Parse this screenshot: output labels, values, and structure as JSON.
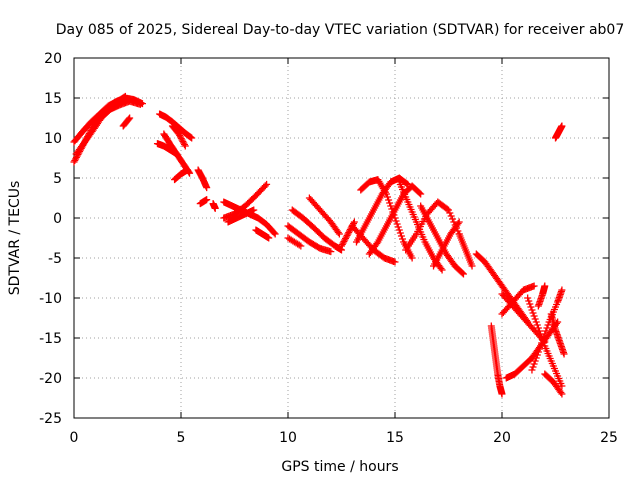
{
  "chart_data": {
    "type": "scatter",
    "title": "Day 085 of 2025, Sidereal Day-to-day VTEC variation (SDTVAR) for receiver ab07",
    "xlabel": "GPS time / hours",
    "ylabel": "SDTVAR / TECUs",
    "xlim": [
      0,
      25
    ],
    "ylim": [
      -25,
      20
    ],
    "x_ticks": [
      "0",
      "5",
      "10",
      "15",
      "20",
      "25"
    ],
    "y_ticks": [
      "20",
      "15",
      "10",
      "5",
      "0",
      "-5",
      "-10",
      "-15",
      "-20",
      "-25"
    ],
    "grid": true,
    "marker": "+",
    "series_color": "#ff0000",
    "traces": [
      {
        "name": "t1",
        "x": [
          0.0,
          0.3,
          0.6,
          0.9,
          1.2,
          1.6,
          2.0,
          2.4,
          2.8,
          3.2
        ],
        "y": [
          7.0,
          8.5,
          10.0,
          11.5,
          13.0,
          14.0,
          14.6,
          15.0,
          14.8,
          14.3
        ]
      },
      {
        "name": "t2",
        "x": [
          0.0,
          0.4,
          0.8,
          1.2,
          1.6,
          2.0,
          2.4
        ],
        "y": [
          9.5,
          10.8,
          12.0,
          13.0,
          13.8,
          14.5,
          15.2
        ]
      },
      {
        "name": "t3",
        "x": [
          0.1,
          0.5,
          0.9,
          1.3,
          1.7,
          2.1,
          2.6,
          3.1
        ],
        "y": [
          8.0,
          9.5,
          11.0,
          12.6,
          13.6,
          14.1,
          14.6,
          14.2
        ]
      },
      {
        "name": "t4",
        "x": [
          2.3,
          2.6
        ],
        "y": [
          11.5,
          12.5
        ]
      },
      {
        "name": "t5",
        "x": [
          4.0,
          4.3,
          4.6,
          4.9,
          5.2,
          5.5
        ],
        "y": [
          13.0,
          12.6,
          12.0,
          11.3,
          10.6,
          10.0
        ]
      },
      {
        "name": "t6",
        "x": [
          4.2,
          4.5,
          4.8,
          5.1,
          5.4
        ],
        "y": [
          10.5,
          9.2,
          8.0,
          6.8,
          5.6
        ]
      },
      {
        "name": "t7",
        "x": [
          3.9,
          4.2,
          4.5,
          4.8
        ],
        "y": [
          9.3,
          9.0,
          8.5,
          8.0
        ]
      },
      {
        "name": "t8",
        "x": [
          4.6,
          4.9,
          5.2
        ],
        "y": [
          11.5,
          10.5,
          9.0
        ]
      },
      {
        "name": "t9",
        "x": [
          4.7,
          5.0,
          5.3
        ],
        "y": [
          4.8,
          5.5,
          6.0
        ]
      },
      {
        "name": "t10",
        "x": [
          5.8,
          6.0,
          6.2
        ],
        "y": [
          6.0,
          5.0,
          3.8
        ]
      },
      {
        "name": "t11",
        "x": [
          5.9,
          6.2
        ],
        "y": [
          1.8,
          2.3
        ]
      },
      {
        "name": "t12",
        "x": [
          6.5,
          6.6
        ],
        "y": [
          1.8,
          1.2
        ]
      },
      {
        "name": "t13",
        "x": [
          7.0,
          7.5,
          8.0,
          8.5,
          9.0
        ],
        "y": [
          0.0,
          0.5,
          1.5,
          2.8,
          4.2
        ]
      },
      {
        "name": "t14",
        "x": [
          7.0,
          7.4,
          7.8,
          8.2,
          8.6,
          9.0,
          9.4
        ],
        "y": [
          2.0,
          1.5,
          1.0,
          0.5,
          0.0,
          -0.8,
          -2.0
        ]
      },
      {
        "name": "t15",
        "x": [
          7.2,
          7.6,
          8.0,
          8.4
        ],
        "y": [
          -0.5,
          0.0,
          0.5,
          1.0
        ]
      },
      {
        "name": "t16",
        "x": [
          8.5,
          8.8,
          9.1
        ],
        "y": [
          -1.5,
          -2.0,
          -2.5
        ]
      },
      {
        "name": "t17",
        "x": [
          10.0,
          10.5,
          11.0,
          11.5,
          12.0
        ],
        "y": [
          -1.0,
          -2.0,
          -3.0,
          -3.8,
          -4.2
        ]
      },
      {
        "name": "t18",
        "x": [
          10.2,
          10.7,
          11.2,
          11.7,
          12.2,
          12.5
        ],
        "y": [
          1.0,
          0.0,
          -1.2,
          -2.5,
          -3.5,
          -4.0
        ]
      },
      {
        "name": "t19",
        "x": [
          11.0,
          11.5,
          12.0,
          12.4
        ],
        "y": [
          2.5,
          1.0,
          -0.5,
          -2.0
        ]
      },
      {
        "name": "t20",
        "x": [
          10.0,
          10.6
        ],
        "y": [
          -2.5,
          -3.5
        ]
      },
      {
        "name": "t21",
        "x": [
          12.5,
          12.8,
          13.1
        ],
        "y": [
          -3.5,
          -2.0,
          -0.5
        ]
      },
      {
        "name": "t22",
        "x": [
          13.2,
          13.6,
          14.0,
          14.4,
          14.8,
          15.2,
          15.6
        ],
        "y": [
          -3.0,
          -1.0,
          1.0,
          3.0,
          4.5,
          5.0,
          4.2
        ]
      },
      {
        "name": "t23",
        "x": [
          13.4,
          13.8,
          14.2,
          14.6,
          15.0,
          15.4,
          15.8
        ],
        "y": [
          3.5,
          4.5,
          4.8,
          3.0,
          0.0,
          -3.0,
          -5.0
        ]
      },
      {
        "name": "t24",
        "x": [
          13.0,
          13.5,
          14.0,
          14.5,
          15.0
        ],
        "y": [
          -1.0,
          -2.5,
          -4.0,
          -5.0,
          -5.5
        ]
      },
      {
        "name": "t25",
        "x": [
          13.8,
          14.2,
          14.6,
          15.0,
          15.4,
          15.8,
          16.2
        ],
        "y": [
          -4.5,
          -3.0,
          -1.0,
          1.0,
          3.0,
          4.0,
          3.0
        ]
      },
      {
        "name": "t26",
        "x": [
          15.2,
          15.6,
          16.0,
          16.4,
          16.8,
          17.2
        ],
        "y": [
          4.5,
          2.0,
          -0.5,
          -3.0,
          -5.0,
          -6.5
        ]
      },
      {
        "name": "t27",
        "x": [
          15.5,
          16.0,
          16.5,
          17.0,
          17.5,
          18.0
        ],
        "y": [
          -4.0,
          -2.0,
          0.5,
          2.0,
          1.0,
          -2.0
        ]
      },
      {
        "name": "t28",
        "x": [
          16.2,
          16.6,
          17.0,
          17.4,
          17.8,
          18.2
        ],
        "y": [
          1.5,
          -0.5,
          -2.5,
          -4.5,
          -6.0,
          -7.0
        ]
      },
      {
        "name": "t29",
        "x": [
          16.8,
          17.2,
          17.6,
          18.0
        ],
        "y": [
          -6.0,
          -4.0,
          -2.0,
          -0.5
        ]
      },
      {
        "name": "t30",
        "x": [
          18.0,
          18.3,
          18.6
        ],
        "y": [
          -2.0,
          -4.0,
          -6.0
        ]
      },
      {
        "name": "t31",
        "x": [
          18.8,
          19.2,
          19.6,
          20.0,
          20.4,
          20.8,
          21.2
        ],
        "y": [
          -4.5,
          -5.5,
          -7.0,
          -8.5,
          -10.0,
          -11.5,
          -13.0
        ]
      },
      {
        "name": "t32",
        "x": [
          19.5,
          19.6,
          19.7,
          19.8,
          19.9,
          20.0
        ],
        "y": [
          -13.5,
          -15.5,
          -17.5,
          -19.5,
          -21.0,
          -22.0
        ]
      },
      {
        "name": "t33",
        "x": [
          20.0,
          20.5,
          21.0,
          21.5,
          22.0
        ],
        "y": [
          -9.5,
          -11.0,
          -12.5,
          -14.0,
          -15.5
        ]
      },
      {
        "name": "t34",
        "x": [
          20.0,
          20.5,
          21.0,
          21.5
        ],
        "y": [
          -12.0,
          -10.5,
          -9.0,
          -8.5
        ]
      },
      {
        "name": "t35",
        "x": [
          20.2,
          20.6,
          21.0,
          21.4,
          21.8,
          22.2,
          22.6
        ],
        "y": [
          -20.0,
          -19.5,
          -18.5,
          -17.5,
          -16.0,
          -14.5,
          -13.0
        ]
      },
      {
        "name": "t36",
        "x": [
          21.2,
          21.6,
          22.0,
          22.4,
          22.8
        ],
        "y": [
          -10.0,
          -13.0,
          -16.0,
          -18.5,
          -21.0
        ]
      },
      {
        "name": "t37",
        "x": [
          21.4,
          21.8,
          22.2,
          22.6,
          22.8
        ],
        "y": [
          -19.0,
          -16.0,
          -13.0,
          -10.5,
          -9.0
        ]
      },
      {
        "name": "t38",
        "x": [
          21.7,
          21.9,
          22.0
        ],
        "y": [
          -11.0,
          -9.5,
          -8.5
        ]
      },
      {
        "name": "t39",
        "x": [
          22.3,
          22.5,
          22.7,
          22.9
        ],
        "y": [
          -12.0,
          -14.0,
          -15.5,
          -17.0
        ]
      },
      {
        "name": "t40",
        "x": [
          22.0,
          22.4,
          22.8
        ],
        "y": [
          -19.5,
          -20.5,
          -22.0
        ]
      },
      {
        "name": "t41",
        "x": [
          22.5,
          22.6,
          22.7,
          22.8
        ],
        "y": [
          10.0,
          10.5,
          11.0,
          11.5
        ]
      }
    ]
  }
}
